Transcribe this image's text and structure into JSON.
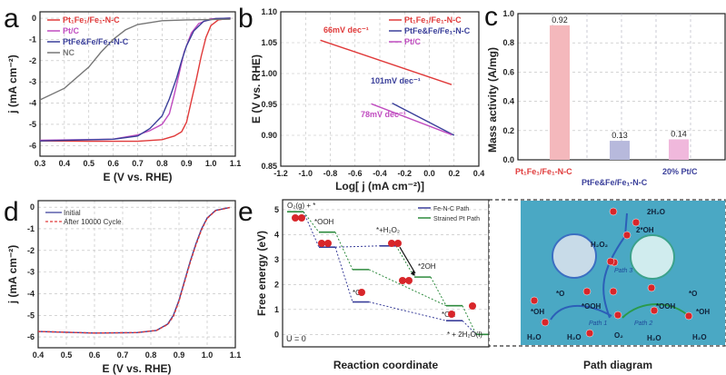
{
  "chart_data": [
    {
      "panel": "a",
      "type": "line",
      "xlabel": "E (V vs. RHE)",
      "ylabel": "j (mA cm⁻²)",
      "xlim": [
        0.3,
        1.1
      ],
      "ylim": [
        -6.5,
        0.3
      ],
      "xticks": [
        "0.3",
        "0.4",
        "0.5",
        "0.6",
        "0.7",
        "0.8",
        "0.9",
        "1.0",
        "1.1"
      ],
      "yticks": [
        "0",
        "-1",
        "-2",
        "-3",
        "-4",
        "-5",
        "-6"
      ],
      "grid": true,
      "legend": "top-left",
      "series": [
        {
          "name": "Pt₁Fe₁/Fe₁-N-C",
          "color": "#e03a3a",
          "points": [
            [
              0.3,
              -5.78
            ],
            [
              0.5,
              -5.8
            ],
            [
              0.7,
              -5.8
            ],
            [
              0.8,
              -5.72
            ],
            [
              0.85,
              -5.55
            ],
            [
              0.88,
              -5.35
            ],
            [
              0.9,
              -4.9
            ],
            [
              0.92,
              -3.9
            ],
            [
              0.94,
              -2.9
            ],
            [
              0.96,
              -1.8
            ],
            [
              0.98,
              -0.9
            ],
            [
              1.0,
              -0.35
            ],
            [
              1.03,
              -0.08
            ],
            [
              1.08,
              0
            ]
          ]
        },
        {
          "name": "Pt/C",
          "color": "#c04cc0",
          "points": [
            [
              0.3,
              -5.75
            ],
            [
              0.6,
              -5.7
            ],
            [
              0.7,
              -5.5
            ],
            [
              0.75,
              -5.3
            ],
            [
              0.8,
              -5.0
            ],
            [
              0.83,
              -4.5
            ],
            [
              0.85,
              -3.6
            ],
            [
              0.87,
              -2.6
            ],
            [
              0.89,
              -1.6
            ],
            [
              0.92,
              -0.7
            ],
            [
              0.95,
              -0.25
            ],
            [
              1.0,
              -0.03
            ],
            [
              1.08,
              0
            ]
          ]
        },
        {
          "name": "PtFe&Fe/Fe₁-N-C",
          "color": "#3a3f9a",
          "points": [
            [
              0.3,
              -5.78
            ],
            [
              0.6,
              -5.7
            ],
            [
              0.7,
              -5.55
            ],
            [
              0.75,
              -5.2
            ],
            [
              0.8,
              -4.6
            ],
            [
              0.83,
              -3.8
            ],
            [
              0.86,
              -2.8
            ],
            [
              0.88,
              -2.0
            ],
            [
              0.9,
              -1.3
            ],
            [
              0.93,
              -0.6
            ],
            [
              0.97,
              -0.15
            ],
            [
              1.02,
              -0.02
            ],
            [
              1.08,
              0
            ]
          ]
        },
        {
          "name": "NC",
          "color": "#777777",
          "points": [
            [
              0.3,
              -3.85
            ],
            [
              0.4,
              -3.3
            ],
            [
              0.5,
              -2.3
            ],
            [
              0.55,
              -1.6
            ],
            [
              0.6,
              -1.0
            ],
            [
              0.65,
              -0.55
            ],
            [
              0.7,
              -0.3
            ],
            [
              0.8,
              -0.12
            ],
            [
              0.9,
              -0.08
            ],
            [
              1.08,
              -0.05
            ]
          ]
        }
      ]
    },
    {
      "panel": "b",
      "type": "line",
      "xlabel": "Log[ j (mA cm⁻²)]",
      "ylabel": "E (V vs. RHE)",
      "xlim": [
        -1.2,
        0.4
      ],
      "ylim": [
        0.85,
        1.1
      ],
      "xticks": [
        "-1.2",
        "-1.0",
        "-0.8",
        "-0.6",
        "-0.4",
        "-0.2",
        "0.0",
        "0.2",
        "0.4"
      ],
      "yticks": [
        "1.10",
        "1.05",
        "1.00",
        "0.95",
        "0.90",
        "0.85"
      ],
      "grid": true,
      "legend": "top-right",
      "series": [
        {
          "name": "Pt₁Fe₁/Fe₁-N-C",
          "color": "#e03a3a",
          "points": [
            [
              -0.88,
              1.054
            ],
            [
              0.18,
              0.982
            ]
          ],
          "annotation": "66mV dec⁻¹"
        },
        {
          "name": "PtFe&Fe/Fe₁-N-C",
          "color": "#3a3f9a",
          "points": [
            [
              -0.3,
              0.952
            ],
            [
              0.2,
              0.9
            ]
          ],
          "annotation": "101mV dec⁻¹"
        },
        {
          "name": "Pt/C",
          "color": "#c04cc0",
          "points": [
            [
              -0.47,
              0.951
            ],
            [
              0.18,
              0.901
            ]
          ],
          "annotation": "78mV dec⁻¹"
        }
      ]
    },
    {
      "panel": "c",
      "type": "bar",
      "ylabel": "Mass activity (A/mg)",
      "ylim": [
        0,
        1.0
      ],
      "yticks": [
        "1.0",
        "0.8",
        "0.6",
        "0.4",
        "0.2",
        "0.0"
      ],
      "grid": true,
      "categories": [
        "Pt₁Fe₁/Fe₁-N-C",
        "PtFe&Fe/Fe₁-N-C",
        "20% Pt/C"
      ],
      "values": [
        0.92,
        0.13,
        0.14
      ],
      "labels": [
        "0.92",
        "0.13",
        "0.14"
      ],
      "colors": [
        "#f4b8bc",
        "#b7b9dc",
        "#f0b8dc"
      ],
      "label_colors": [
        "#e03a3a",
        "#3a3f9a",
        "#3a3f9a"
      ]
    },
    {
      "panel": "d",
      "type": "line",
      "xlabel": "E (V vs. RHE)",
      "ylabel": "j (mA cm⁻²)",
      "xlim": [
        0.4,
        1.1
      ],
      "ylim": [
        -6.5,
        0.3
      ],
      "xticks": [
        "0.4",
        "0.5",
        "0.6",
        "0.7",
        "0.8",
        "0.9",
        "1.0",
        "1.1"
      ],
      "yticks": [
        "0",
        "-1",
        "-2",
        "-3",
        "-4",
        "-5",
        "-6"
      ],
      "grid": true,
      "legend": "top-left",
      "series": [
        {
          "name": "Initial",
          "color": "#3a3f9a",
          "dashed": false,
          "points": [
            [
              0.4,
              -5.75
            ],
            [
              0.6,
              -5.82
            ],
            [
              0.75,
              -5.8
            ],
            [
              0.82,
              -5.7
            ],
            [
              0.86,
              -5.4
            ],
            [
              0.88,
              -5.0
            ],
            [
              0.9,
              -4.3
            ],
            [
              0.92,
              -3.4
            ],
            [
              0.94,
              -2.5
            ],
            [
              0.96,
              -1.7
            ],
            [
              0.98,
              -1.0
            ],
            [
              1.0,
              -0.5
            ],
            [
              1.03,
              -0.15
            ],
            [
              1.08,
              -0.02
            ]
          ]
        },
        {
          "name": "After 10000 Cycle",
          "color": "#e03a3a",
          "dashed": true,
          "points": [
            [
              0.4,
              -5.75
            ],
            [
              0.6,
              -5.82
            ],
            [
              0.75,
              -5.8
            ],
            [
              0.82,
              -5.7
            ],
            [
              0.86,
              -5.42
            ],
            [
              0.88,
              -5.05
            ],
            [
              0.9,
              -4.35
            ],
            [
              0.92,
              -3.45
            ],
            [
              0.94,
              -2.55
            ],
            [
              0.96,
              -1.75
            ],
            [
              0.98,
              -1.05
            ],
            [
              1.0,
              -0.52
            ],
            [
              1.03,
              -0.16
            ],
            [
              1.08,
              -0.02
            ]
          ]
        }
      ]
    },
    {
      "panel": "e",
      "type": "line",
      "xlabel": "Reaction coordinate",
      "ylabel": "Free energy (eV)",
      "ylim": [
        -0.5,
        5.4
      ],
      "yticks": [
        "5",
        "4",
        "3",
        "2",
        "1",
        "0"
      ],
      "legend": "top-right",
      "condition": "U = 0",
      "series": [
        {
          "name": "Fe-N-C Path",
          "color": "#3a3f9a",
          "levels": [
            [
              1,
              3.5
            ],
            [
              2,
              1.3
            ],
            [
              3,
              3.55
            ],
            [
              5,
              0.55
            ]
          ]
        },
        {
          "name": "Strained Pt Path",
          "color": "#2e8b3e",
          "levels": [
            [
              0,
              4.92
            ],
            [
              1,
              4.1
            ],
            [
              2,
              2.6
            ],
            [
              4,
              2.3
            ],
            [
              5,
              1.15
            ],
            [
              6,
              0
            ]
          ]
        }
      ],
      "state_labels": [
        "O₂(g) + *",
        "*OOH",
        "*+H₂O₂",
        "*2OH",
        "*O",
        "*OH",
        "* + 2H₂O(l)"
      ]
    }
  ],
  "panels": {
    "a": "a",
    "b": "b",
    "c": "c",
    "d": "d",
    "e": "e"
  },
  "path_diagram": {
    "title": "Path diagram",
    "background": "#4aa8c4",
    "labels": [
      "2H₂O",
      "2*OH",
      "H₂O₂",
      "Path 3",
      "*O",
      "*OOH",
      "*OH",
      "H₂O",
      "H₂O",
      "O₂",
      "Path 1",
      "Path 2",
      "*OOH",
      "*O",
      "*OH",
      "H₂O",
      "H₂O"
    ]
  }
}
